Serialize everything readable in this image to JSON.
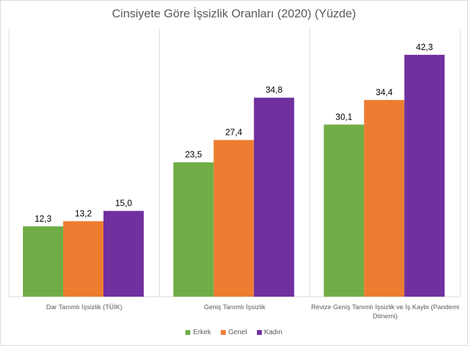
{
  "chart_data": {
    "type": "bar",
    "title": "Cinsiyete Göre İşsizlik Oranları (2020) (Yüzde)",
    "categories": [
      "Dar Tanımlı İşsizlik (TÜİK)",
      "Geniş Tanımlı İşsizlik",
      "Revize Geniş Tanımlı İşsizlik ve İş Kaybı (Pandemi Dönemi)"
    ],
    "category_lines": [
      [
        "Dar Tanımlı İşsizlik (TÜİK)"
      ],
      [
        "Geniş Tanımlı İşsizlik"
      ],
      [
        "Revize Geniş Tanımlı İşsizlik ve İş Kaybı (Pandemi",
        "Dönemi)"
      ]
    ],
    "series": [
      {
        "name": "Erkek",
        "values": [
          12.3,
          23.5,
          30.1
        ],
        "labels": [
          "12,3",
          "23,5",
          "30,1"
        ],
        "color": "#70ad47"
      },
      {
        "name": "Genel",
        "values": [
          13.2,
          27.4,
          34.4
        ],
        "labels": [
          "13,2",
          "27,4",
          "34,4"
        ],
        "color": "#ed7d31"
      },
      {
        "name": "Kadın",
        "values": [
          15.0,
          34.8,
          42.3
        ],
        "labels": [
          "15,0",
          "34,8",
          "42,3"
        ],
        "color": "#7030a0"
      }
    ],
    "ylim": [
      0,
      45
    ],
    "grid": false,
    "legend_position": "bottom"
  }
}
